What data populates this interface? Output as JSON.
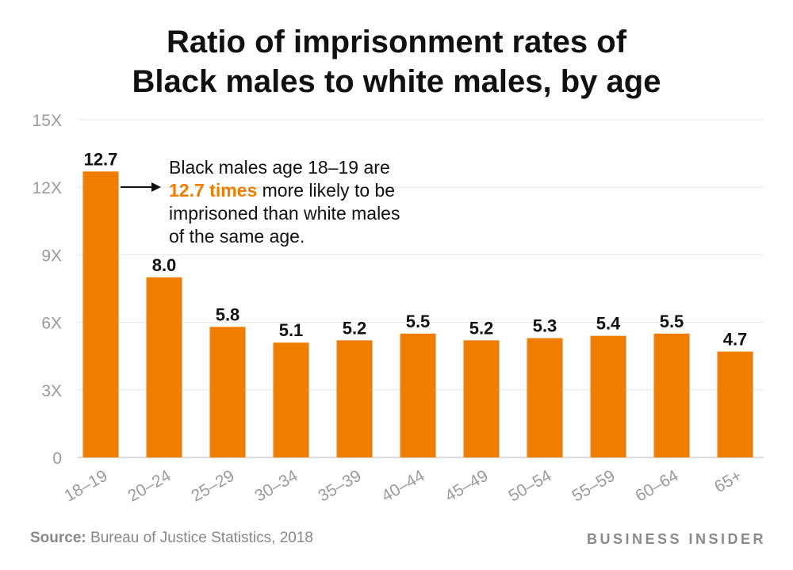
{
  "title_line1": "Ratio of imprisonment rates of",
  "title_line2": "Black males to white males, by age",
  "source_label": "Source:",
  "source_text": "Bureau of Justice Statistics, 2018",
  "brand": "BUSINESS INSIDER",
  "annotation": {
    "line1": "Black males age 18–19 are",
    "highlight": "12.7 times",
    "line2_rest": " more likely to be",
    "line3": "imprisoned than white males",
    "line4": "of the same age."
  },
  "colors": {
    "bar": "#f07d00",
    "grid": "#e6e6e6",
    "axis_text": "#9a9a9a",
    "highlight": "#f07d00"
  },
  "chart_data": {
    "type": "bar",
    "title": "Ratio of imprisonment rates of Black males to white males, by age",
    "categories": [
      "18–19",
      "20–24",
      "25–29",
      "30–34",
      "35–39",
      "40–44",
      "45–49",
      "50–54",
      "55–59",
      "60–64",
      "65+"
    ],
    "values": [
      12.7,
      8.0,
      5.8,
      5.1,
      5.2,
      5.5,
      5.2,
      5.3,
      5.4,
      5.5,
      4.7
    ],
    "value_labels": [
      "12.7",
      "8.0",
      "5.8",
      "5.1",
      "5.2",
      "5.5",
      "5.2",
      "5.3",
      "5.4",
      "5.5",
      "4.7"
    ],
    "yticks": [
      0,
      3,
      6,
      9,
      12,
      15
    ],
    "ytick_labels": [
      "0",
      "3X",
      "6X",
      "9X",
      "12X",
      "15X"
    ],
    "ylim": [
      0,
      15
    ],
    "xlabel": "",
    "ylabel": "",
    "grid": true
  }
}
